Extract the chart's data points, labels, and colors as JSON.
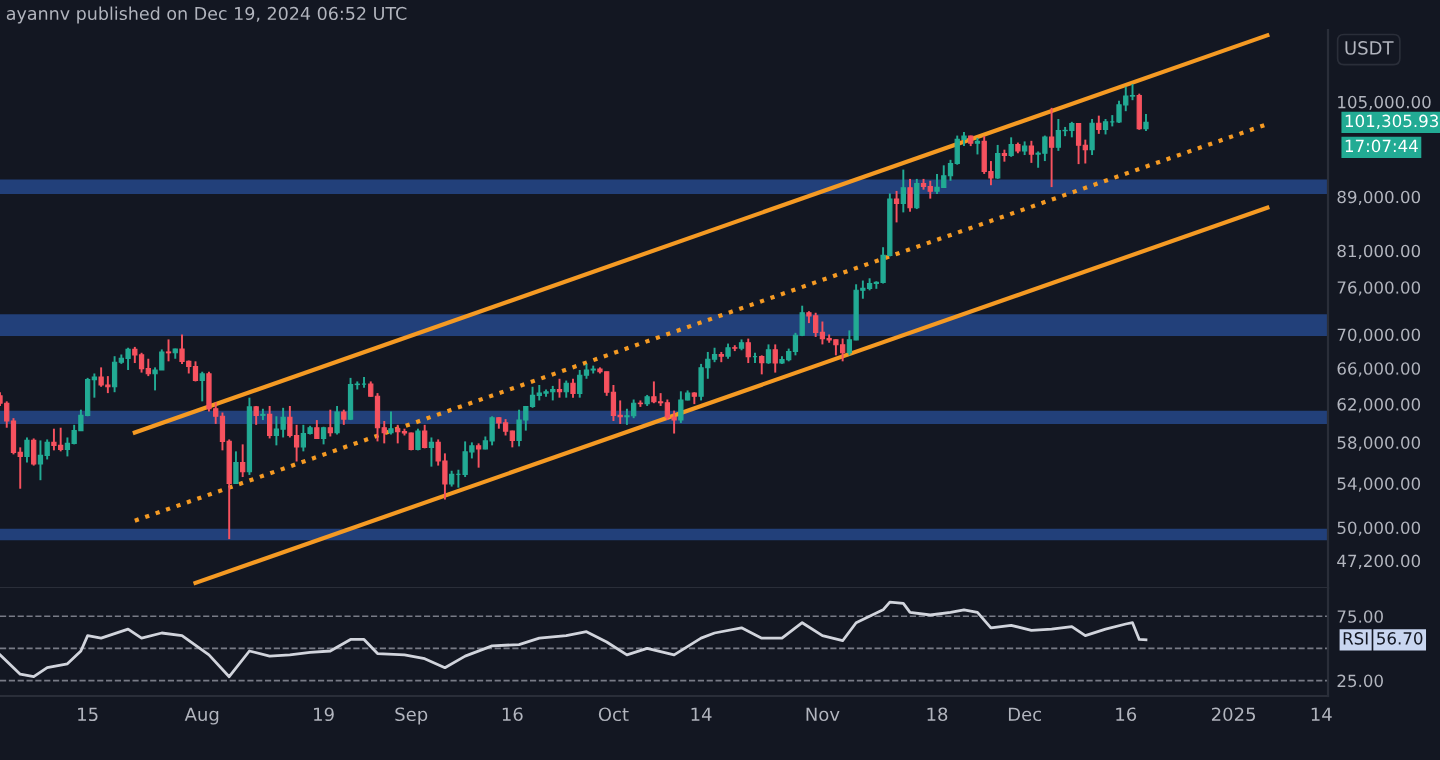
{
  "chart_data": [
    {
      "type": "candlestick",
      "ylabel": "USDT",
      "log": true,
      "grid": false,
      "tick_labels": "y",
      "annotations": [
        "ayannv published on Dec 19, 2024 06:52 UTC",
        "101,305.93",
        "17:07:44"
      ],
      "xlim": [
        "2024-07-02",
        "2025-01-15"
      ],
      "ylim": [
        45000,
        119000
      ],
      "yticks": [
        {
          "value": 47200,
          "label": "47,200.00"
        },
        {
          "value": 50000,
          "label": "50,000.00"
        },
        {
          "value": 54000,
          "label": "54,000.00"
        },
        {
          "value": 58000,
          "label": "58,000.00"
        },
        {
          "value": 62000,
          "label": "62,000.00"
        },
        {
          "value": 66000,
          "label": "66,000.00"
        },
        {
          "value": 70000,
          "label": "70,000.00"
        },
        {
          "value": 76000,
          "label": "76,000.00"
        },
        {
          "value": 81000,
          "label": "81,000.00"
        },
        {
          "value": 89000,
          "label": "89,000.00"
        },
        {
          "value": 105000,
          "label": "105,000.00"
        }
      ],
      "colors": [
        "#f7525f",
        "#f7525f",
        "#f7525f",
        "#f7525f",
        "#22ab94",
        "#f7525f",
        "#22ab94",
        "#22ab94",
        "#f7525f",
        "#f7525f",
        "#22ab94",
        "#22ab94",
        "#22ab94",
        "#22ab94",
        "#22ab94",
        "#f7525f",
        "#f7525f",
        "#22ab94",
        "#22ab94",
        "#22ab94",
        "#f7525f",
        "#f7525f",
        "#f7525f",
        "#22ab94",
        "#22ab94",
        "#f7525f",
        "#22ab94",
        "#f7525f",
        "#f7525f",
        "#f7525f",
        "#22ab94",
        "#f7525f",
        "#f7525f",
        "#f7525f",
        "#f7525f",
        "#22ab94",
        "#f7525f",
        "#22ab94",
        "#f7525f",
        "#22ab94",
        "#f7525f",
        "#22ab94",
        "#22ab94",
        "#f7525f",
        "#f7525f",
        "#22ab94",
        "#22ab94",
        "#f7525f",
        "#22ab94",
        "#f7525f",
        "#22ab94",
        "#f7525f",
        "#22ab94",
        "#22ab94",
        "#22ab94",
        "#f7525f",
        "#f7525f",
        "#f7525f",
        "#22ab94",
        "#f7525f",
        "#f7525f",
        "#f7525f",
        "#22ab94",
        "#f7525f",
        "#22ab94",
        "#f7525f",
        "#f7525f",
        "#22ab94",
        "#22ab94",
        "#22ab94",
        "#22ab94",
        "#f7525f",
        "#22ab94",
        "#22ab94",
        "#f7525f",
        "#f7525f",
        "#f7525f",
        "#22ab94",
        "#22ab94",
        "#22ab94",
        "#22ab94",
        "#22ab94",
        "#22ab94",
        "#f7525f",
        "#22ab94",
        "#f7525f",
        "#22ab94",
        "#22ab94",
        "#22ab94",
        "#f7525f",
        "#f7525f",
        "#f7525f",
        "#f7525f",
        "#22ab94",
        "#22ab94",
        "#f7525f",
        "#22ab94",
        "#f7525f",
        "#f7525f",
        "#f7525f",
        "#f7525f",
        "#22ab94",
        "#22ab94",
        "#f7525f",
        "#22ab94",
        "#22ab94",
        "#22ab94",
        "#f7525f",
        "#22ab94",
        "#f7525f",
        "#22ab94",
        "#f7525f",
        "#22ab94",
        "#f7525f",
        "#22ab94",
        "#f7525f",
        "#22ab94",
        "#22ab94",
        "#22ab94",
        "#22ab94",
        "#f7525f",
        "#f7525f",
        "#f7525f",
        "#f7525f",
        "#f7525f",
        "#f7525f",
        "#22ab94",
        "#22ab94",
        "#22ab94",
        "#22ab94",
        "#22ab94",
        "#22ab94",
        "#22ab94",
        "#f7525f",
        "#22ab94",
        "#f7525f",
        "#22ab94",
        "#f7525f",
        "#f7525f",
        "#22ab94",
        "#22ab94",
        "#22ab94",
        "#22ab94",
        "#22ab94",
        "#f7525f",
        "#22ab94",
        "#f7525f",
        "#f7525f",
        "#22ab94",
        "#f7525f",
        "#22ab94",
        "#f7525f",
        "#22ab94",
        "#f7525f",
        "#22ab94",
        "#22ab94",
        "#f7525f",
        "#22ab94",
        "#22ab94",
        "#22ab94",
        "#f7525f",
        "#f7525f",
        "#22ab94",
        "#f7525f",
        "#22ab94",
        "#22ab94",
        "#22ab94",
        "#22ab94",
        "#22ab94",
        "#f7525f",
        "#22ab94"
      ],
      "bands": [
        {
          "axis": "y",
          "from": 89400,
          "to": 91700,
          "color": "#22407a"
        },
        {
          "axis": "y",
          "from": 69800,
          "to": 72500,
          "color": "#22407a"
        },
        {
          "axis": "y",
          "from": 59900,
          "to": 61300,
          "color": "#22407a"
        },
        {
          "axis": "y",
          "from": 48900,
          "to": 49900,
          "color": "#22407a"
        }
      ],
      "series": [
        {
          "type": "line",
          "x": [
            "2024-07-22",
            "2025-01-06"
          ],
          "values": [
            59000,
            117900
          ],
          "color": "#f59a23",
          "line_style": "solid"
        },
        {
          "type": "line",
          "x": [
            "2024-07-22",
            "2025-01-06"
          ],
          "values": [
            50600,
            101000
          ],
          "color": "#f59a23",
          "line_style": "dotted"
        },
        {
          "type": "line",
          "x": [
            "2024-07-31",
            "2025-01-06"
          ],
          "values": [
            45400,
            87300
          ],
          "color": "#f59a23",
          "line_style": "solid"
        }
      ],
      "x": [
        "2024-07-02",
        "2024-07-03",
        "2024-07-04",
        "2024-07-05",
        "2024-07-06",
        "2024-07-07",
        "2024-07-08",
        "2024-07-09",
        "2024-07-10",
        "2024-07-11",
        "2024-07-12",
        "2024-07-13",
        "2024-07-14",
        "2024-07-15",
        "2024-07-16",
        "2024-07-17",
        "2024-07-18",
        "2024-07-19",
        "2024-07-20",
        "2024-07-21",
        "2024-07-22",
        "2024-07-23",
        "2024-07-24",
        "2024-07-25",
        "2024-07-26",
        "2024-07-27",
        "2024-07-28",
        "2024-07-29",
        "2024-07-30",
        "2024-07-31",
        "2024-08-01",
        "2024-08-02",
        "2024-08-03",
        "2024-08-04",
        "2024-08-05",
        "2024-08-06",
        "2024-08-07",
        "2024-08-08",
        "2024-08-09",
        "2024-08-10",
        "2024-08-11",
        "2024-08-12",
        "2024-08-13",
        "2024-08-14",
        "2024-08-15",
        "2024-08-16",
        "2024-08-17",
        "2024-08-18",
        "2024-08-19",
        "2024-08-20",
        "2024-08-21",
        "2024-08-22",
        "2024-08-23",
        "2024-08-24",
        "2024-08-25",
        "2024-08-26",
        "2024-08-27",
        "2024-08-28",
        "2024-08-29",
        "2024-08-30",
        "2024-08-31",
        "2024-09-01",
        "2024-09-02",
        "2024-09-03",
        "2024-09-04",
        "2024-09-05",
        "2024-09-06",
        "2024-09-07",
        "2024-09-08",
        "2024-09-09",
        "2024-09-10",
        "2024-09-11",
        "2024-09-12",
        "2024-09-13",
        "2024-09-14",
        "2024-09-15",
        "2024-09-16",
        "2024-09-17",
        "2024-09-18",
        "2024-09-19",
        "2024-09-20",
        "2024-09-21",
        "2024-09-22",
        "2024-09-23",
        "2024-09-24",
        "2024-09-25",
        "2024-09-26",
        "2024-09-27",
        "2024-09-28",
        "2024-09-29",
        "2024-09-30",
        "2024-10-01",
        "2024-10-02",
        "2024-10-03",
        "2024-10-04",
        "2024-10-05",
        "2024-10-06",
        "2024-10-07",
        "2024-10-08",
        "2024-10-09",
        "2024-10-10",
        "2024-10-11",
        "2024-10-12",
        "2024-10-13",
        "2024-10-14",
        "2024-10-15",
        "2024-10-16",
        "2024-10-17",
        "2024-10-18",
        "2024-10-19",
        "2024-10-20",
        "2024-10-21",
        "2024-10-22",
        "2024-10-23",
        "2024-10-24",
        "2024-10-25",
        "2024-10-26",
        "2024-10-27",
        "2024-10-28",
        "2024-10-29",
        "2024-10-30",
        "2024-10-31",
        "2024-11-01",
        "2024-11-02",
        "2024-11-03",
        "2024-11-04",
        "2024-11-05",
        "2024-11-06",
        "2024-11-07",
        "2024-11-08",
        "2024-11-09",
        "2024-11-10",
        "2024-11-11",
        "2024-11-12",
        "2024-11-13",
        "2024-11-14",
        "2024-11-15",
        "2024-11-16",
        "2024-11-17",
        "2024-11-18",
        "2024-11-19",
        "2024-11-20",
        "2024-11-21",
        "2024-11-22",
        "2024-11-23",
        "2024-11-24",
        "2024-11-25",
        "2024-11-26",
        "2024-11-27",
        "2024-11-28",
        "2024-11-29",
        "2024-11-30",
        "2024-12-01",
        "2024-12-02",
        "2024-12-03",
        "2024-12-04",
        "2024-12-05",
        "2024-12-06",
        "2024-12-07",
        "2024-12-08",
        "2024-12-09",
        "2024-12-10",
        "2024-12-11",
        "2024-12-12",
        "2024-12-13",
        "2024-12-14",
        "2024-12-15",
        "2024-12-16",
        "2024-12-17",
        "2024-12-18",
        "2024-12-19"
      ],
      "ohlc": [
        [
          62900,
          63300,
          61800,
          62100
        ],
        [
          62100,
          62300,
          59500,
          60200
        ],
        [
          60200,
          60500,
          56800,
          57000
        ],
        [
          57000,
          57500,
          53500,
          56600
        ],
        [
          56600,
          58500,
          56000,
          58200
        ],
        [
          58200,
          58400,
          55700,
          55850
        ],
        [
          55850,
          58200,
          54300,
          56700
        ],
        [
          56700,
          58300,
          56300,
          58000
        ],
        [
          58000,
          59400,
          57200,
          57700
        ],
        [
          57700,
          59500,
          57100,
          57300
        ],
        [
          57300,
          58500,
          56600,
          57900
        ],
        [
          57900,
          59800,
          57800,
          59200
        ],
        [
          59200,
          61400,
          59200,
          60800
        ],
        [
          60800,
          64900,
          60700,
          64700
        ],
        [
          64700,
          65400,
          62700,
          65000
        ],
        [
          65000,
          66100,
          63900,
          64100
        ],
        [
          64100,
          65100,
          63200,
          63900
        ],
        [
          63900,
          67400,
          63300,
          66700
        ],
        [
          66700,
          67600,
          66500,
          67150
        ],
        [
          67150,
          68400,
          65800,
          68200
        ],
        [
          68200,
          68500,
          66600,
          67550
        ],
        [
          67550,
          67800,
          65500,
          65950
        ],
        [
          65950,
          67100,
          65100,
          65370
        ],
        [
          65370,
          66100,
          63500,
          65800
        ],
        [
          65800,
          68200,
          65800,
          67900
        ],
        [
          67900,
          69400,
          66800,
          67800
        ],
        [
          67800,
          68300,
          67100,
          68250
        ],
        [
          68250,
          70000,
          66500,
          66800
        ],
        [
          66800,
          66900,
          65400,
          66200
        ],
        [
          66200,
          66800,
          64500,
          64600
        ],
        [
          64600,
          65600,
          62300,
          65350
        ],
        [
          65350,
          65600,
          61200,
          61500
        ],
        [
          61500,
          62200,
          59900,
          60700
        ],
        [
          60700,
          61100,
          57200,
          58100
        ],
        [
          58100,
          58300,
          49000,
          54000
        ],
        [
          54000,
          57100,
          54000,
          56000
        ],
        [
          56000,
          57800,
          54600,
          55100
        ],
        [
          55100,
          62700,
          54800,
          61700
        ],
        [
          61700,
          61800,
          59800,
          60800
        ],
        [
          60800,
          61500,
          60300,
          60900
        ],
        [
          60900,
          61800,
          58400,
          58700
        ],
        [
          58700,
          60700,
          57700,
          59350
        ],
        [
          59350,
          61600,
          58500,
          60600
        ],
        [
          60600,
          61800,
          58500,
          58700
        ],
        [
          58700,
          59800,
          56100,
          57550
        ],
        [
          57550,
          59800,
          57100,
          58900
        ],
        [
          58900,
          59700,
          58800,
          59500
        ],
        [
          59500,
          60300,
          58400,
          58400
        ],
        [
          58400,
          59600,
          57800,
          59500
        ],
        [
          59500,
          61400,
          58600,
          59000
        ],
        [
          59000,
          61800,
          58800,
          61150
        ],
        [
          61150,
          61400,
          59800,
          60400
        ],
        [
          60400,
          64900,
          60300,
          64150
        ],
        [
          64150,
          64500,
          63600,
          64200
        ],
        [
          64200,
          65000,
          63800,
          64200
        ],
        [
          64200,
          64500,
          62800,
          62850
        ],
        [
          62850,
          63200,
          58100,
          59500
        ],
        [
          59500,
          60200,
          57900,
          59000
        ],
        [
          59000,
          61200,
          58800,
          59400
        ],
        [
          59400,
          59800,
          57900,
          59100
        ],
        [
          59100,
          59400,
          58700,
          58950
        ],
        [
          58950,
          59000,
          57200,
          57300
        ],
        [
          57300,
          59400,
          57200,
          59150
        ],
        [
          59150,
          59800,
          57400,
          57500
        ],
        [
          57500,
          58500,
          55600,
          58000
        ],
        [
          58000,
          58300,
          55700,
          56150
        ],
        [
          56150,
          56900,
          52500,
          53950
        ],
        [
          53950,
          55200,
          53700,
          54850
        ],
        [
          54850,
          55300,
          53600,
          54850
        ],
        [
          54850,
          58100,
          54600,
          57050
        ],
        [
          57050,
          58000,
          56400,
          57650
        ],
        [
          57650,
          57900,
          55500,
          57350
        ],
        [
          57350,
          58600,
          57300,
          58150
        ],
        [
          58150,
          60700,
          57700,
          60550
        ],
        [
          60550,
          60600,
          59400,
          60000
        ],
        [
          60000,
          60400,
          58700,
          59150
        ],
        [
          59150,
          59200,
          57500,
          58200
        ],
        [
          58200,
          61400,
          57600,
          60300
        ],
        [
          60300,
          61800,
          59200,
          61750
        ],
        [
          61750,
          63900,
          61600,
          62950
        ],
        [
          62950,
          64100,
          62400,
          63200
        ],
        [
          63200,
          63600,
          62800,
          63350
        ],
        [
          63350,
          64000,
          62400,
          63600
        ],
        [
          63600,
          64800,
          62700,
          63350
        ],
        [
          63350,
          64600,
          62700,
          64300
        ],
        [
          64300,
          64800,
          62700,
          63150
        ],
        [
          63150,
          65800,
          62700,
          65200
        ],
        [
          65200,
          66500,
          64800,
          65800
        ],
        [
          65800,
          66300,
          65400,
          65900
        ],
        [
          65900,
          66100,
          65400,
          65600
        ],
        [
          65600,
          65600,
          62900,
          63300
        ],
        [
          63300,
          64100,
          60200,
          60800
        ],
        [
          60800,
          62400,
          59900,
          60650
        ],
        [
          60650,
          61500,
          59800,
          60750
        ],
        [
          60750,
          62500,
          60500,
          62100
        ],
        [
          62100,
          62400,
          61700,
          62050
        ],
        [
          62050,
          63000,
          61800,
          62800
        ],
        [
          62800,
          64500,
          62100,
          62250
        ],
        [
          62250,
          63200,
          61800,
          62150
        ],
        [
          62150,
          62500,
          60300,
          60600
        ],
        [
          60600,
          61300,
          58900,
          60300
        ],
        [
          60300,
          63400,
          60000,
          62450
        ],
        [
          62450,
          63500,
          62400,
          63200
        ],
        [
          63200,
          63300,
          62000,
          62850
        ],
        [
          62850,
          66500,
          62400,
          66050
        ],
        [
          66050,
          67900,
          64800,
          67050
        ],
        [
          67050,
          68400,
          66700,
          67600
        ],
        [
          67600,
          67900,
          66700,
          67400
        ],
        [
          67400,
          68900,
          67100,
          68400
        ],
        [
          68400,
          68700,
          68000,
          68350
        ],
        [
          68350,
          69400,
          68100,
          69000
        ],
        [
          69000,
          69500,
          66600,
          67350
        ],
        [
          67350,
          67800,
          66600,
          67350
        ],
        [
          67350,
          67500,
          65300,
          66650
        ],
        [
          66650,
          68800,
          66500,
          68150
        ],
        [
          68150,
          68800,
          65500,
          66600
        ],
        [
          66600,
          67400,
          66500,
          67000
        ],
        [
          67000,
          68300,
          66800,
          67950
        ],
        [
          67950,
          70200,
          67500,
          69900
        ],
        [
          69900,
          73600,
          69800,
          72700
        ],
        [
          72700,
          72900,
          71400,
          72300
        ],
        [
          72300,
          72700,
          69700,
          70250
        ],
        [
          70250,
          71600,
          68800,
          69500
        ],
        [
          69500,
          70000,
          69000,
          69350
        ],
        [
          69350,
          69400,
          67500,
          68750
        ],
        [
          68750,
          69500,
          66800,
          67800
        ],
        [
          67800,
          70500,
          67500,
          69350
        ],
        [
          69350,
          76400,
          69300,
          75600
        ],
        [
          75600,
          76900,
          74500,
          75850
        ],
        [
          75850,
          77200,
          75600,
          76500
        ],
        [
          76500,
          76800,
          75800,
          76650
        ],
        [
          76650,
          81500,
          76500,
          80350
        ],
        [
          80350,
          89500,
          80200,
          88650
        ],
        [
          88650,
          89900,
          85100,
          87950
        ],
        [
          87950,
          93300,
          86600,
          90400
        ],
        [
          90400,
          91800,
          86700,
          87300
        ],
        [
          87300,
          91800,
          87100,
          91050
        ],
        [
          91050,
          91800,
          90100,
          90600
        ],
        [
          90600,
          91500,
          88700,
          89850
        ],
        [
          89850,
          92600,
          89400,
          90450
        ],
        [
          90450,
          94000,
          90400,
          92300
        ],
        [
          92300,
          94900,
          91500,
          94300
        ],
        [
          94300,
          99000,
          94100,
          98350
        ],
        [
          98350,
          99600,
          97200,
          98900
        ],
        [
          98900,
          99000,
          97200,
          97700
        ],
        [
          97700,
          98600,
          95800,
          98000
        ],
        [
          98000,
          98900,
          92600,
          93000
        ],
        [
          93000,
          94700,
          90800,
          91950
        ],
        [
          91950,
          97400,
          91800,
          95950
        ],
        [
          95950,
          96600,
          94600,
          95650
        ],
        [
          95650,
          98700,
          95400,
          97450
        ],
        [
          97450,
          97800,
          96000,
          96400
        ],
        [
          96400,
          98000,
          95700,
          97200
        ],
        [
          97200,
          98100,
          94400,
          95850
        ],
        [
          95850,
          96300,
          93600,
          96000
        ],
        [
          96000,
          99000,
          94700,
          98750
        ],
        [
          98750,
          103900,
          90500,
          97000
        ],
        [
          97000,
          101900,
          96400,
          99850
        ],
        [
          99850,
          100500,
          98900,
          99900
        ],
        [
          99900,
          101400,
          98700,
          101100
        ],
        [
          101100,
          101200,
          94200,
          97350
        ],
        [
          97350,
          98300,
          94300,
          96600
        ],
        [
          96600,
          101900,
          95700,
          101150
        ],
        [
          101150,
          102500,
          99300,
          100050
        ],
        [
          100050,
          101900,
          99200,
          101400
        ],
        [
          101400,
          102600,
          100600,
          101400
        ],
        [
          101400,
          105200,
          101200,
          104450
        ],
        [
          104450,
          107800,
          103300,
          106050
        ],
        [
          106050,
          108300,
          105300,
          106150
        ],
        [
          106150,
          106500,
          100000,
          100200
        ],
        [
          100200,
          102800,
          99800,
          101305.93
        ]
      ]
    },
    {
      "type": "line",
      "grid": false,
      "xlim": [
        "2024-07-02",
        "2025-01-15"
      ],
      "xticks": [
        {
          "value": "2024-07-15",
          "label": "15"
        },
        {
          "value": "2024-08-01",
          "label": "Aug"
        },
        {
          "value": "2024-08-19",
          "label": "19"
        },
        {
          "value": "2024-09-01",
          "label": "Sep"
        },
        {
          "value": "2024-09-16",
          "label": "16"
        },
        {
          "value": "2024-10-01",
          "label": "Oct"
        },
        {
          "value": "2024-10-14",
          "label": "14"
        },
        {
          "value": "2024-11-01",
          "label": "Nov"
        },
        {
          "value": "2024-11-18",
          "label": "18"
        },
        {
          "value": "2024-12-01",
          "label": "Dec"
        },
        {
          "value": "2024-12-16",
          "label": "16"
        },
        {
          "value": "2025-01-01",
          "label": "2025"
        },
        {
          "value": "2025-01-14",
          "label": "14"
        }
      ],
      "ylim": [
        13,
        97
      ],
      "yticks": [
        {
          "value": 25,
          "label": "25.00"
        },
        {
          "value": 75,
          "label": "75.00"
        }
      ],
      "ref_lines": [
        {
          "axis": "y",
          "value": 75,
          "color": "#787b86",
          "line_style": "dashed"
        },
        {
          "axis": "y",
          "value": 50,
          "color": "#787b86",
          "line_style": "dashed"
        },
        {
          "axis": "y",
          "value": 25,
          "color": "#787b86",
          "line_style": "dashed"
        }
      ],
      "series": [
        {
          "name": "RSI",
          "color": "#d1d4dc",
          "x": [
            "2024-07-02",
            "2024-07-05",
            "2024-07-07",
            "2024-07-09",
            "2024-07-12",
            "2024-07-14",
            "2024-07-15",
            "2024-07-17",
            "2024-07-21",
            "2024-07-23",
            "2024-07-26",
            "2024-07-29",
            "2024-08-02",
            "2024-08-05",
            "2024-08-08",
            "2024-08-11",
            "2024-08-14",
            "2024-08-17",
            "2024-08-20",
            "2024-08-23",
            "2024-08-25",
            "2024-08-27",
            "2024-08-31",
            "2024-09-03",
            "2024-09-06",
            "2024-09-09",
            "2024-09-13",
            "2024-09-17",
            "2024-09-20",
            "2024-09-24",
            "2024-09-27",
            "2024-09-30",
            "2024-10-03",
            "2024-10-06",
            "2024-10-10",
            "2024-10-14",
            "2024-10-16",
            "2024-10-20",
            "2024-10-23",
            "2024-10-26",
            "2024-10-29",
            "2024-11-01",
            "2024-11-04",
            "2024-11-06",
            "2024-11-10",
            "2024-11-11",
            "2024-11-13",
            "2024-11-14",
            "2024-11-17",
            "2024-11-20",
            "2024-11-22",
            "2024-11-24",
            "2024-11-26",
            "2024-11-29",
            "2024-12-02",
            "2024-12-05",
            "2024-12-08",
            "2024-12-10",
            "2024-12-13",
            "2024-12-16",
            "2024-12-17",
            "2024-12-18",
            "2024-12-19"
          ],
          "values": [
            45,
            30,
            28,
            35,
            38,
            48,
            60,
            58,
            65,
            58,
            62,
            60,
            45,
            28,
            48,
            44,
            45,
            47,
            48,
            57,
            57,
            46,
            45,
            42,
            35,
            44,
            52,
            53,
            58,
            60,
            63,
            55,
            45,
            50,
            45,
            58,
            62,
            66,
            58,
            58,
            70,
            60,
            56,
            70,
            80,
            86,
            85,
            78,
            76,
            78,
            80,
            78,
            66,
            68,
            64,
            65,
            67,
            60,
            65,
            69,
            70,
            57,
            56.7
          ],
          "line_style": "solid"
        }
      ],
      "annotations": [
        "56.70"
      ]
    }
  ]
}
